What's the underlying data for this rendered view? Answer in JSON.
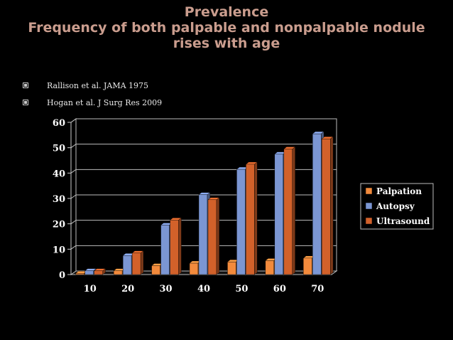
{
  "slide": {
    "title_lines": [
      "Prevalence",
      "Frequency of both palpable and nonpalpable nodule",
      "rises with age"
    ],
    "bullets": [
      "Rallison et al. JAMA 1975",
      "Hogan et al. J Surg Res 2009"
    ]
  },
  "chart_data": {
    "type": "bar",
    "title": "",
    "xlabel": "",
    "ylabel": "",
    "categories": [
      "10",
      "20",
      "30",
      "40",
      "50",
      "60",
      "70"
    ],
    "ylim": [
      0,
      60
    ],
    "yticks": [
      0,
      10,
      20,
      30,
      40,
      50,
      60
    ],
    "grid": true,
    "legend_position": "right",
    "series": [
      {
        "name": "Palpation",
        "color": "#f28a3c",
        "values": [
          0.5,
          1.5,
          3.5,
          4.5,
          5,
          5.5,
          6.5
        ]
      },
      {
        "name": "Autopsy",
        "color": "#7b96d3",
        "values": [
          1.5,
          7.5,
          19.5,
          31.5,
          41.5,
          47.5,
          55.5
        ]
      },
      {
        "name": "Ultrasound",
        "color": "#d2612a",
        "values": [
          1.5,
          8.5,
          21.5,
          29.5,
          43.5,
          49.5,
          53.5
        ]
      }
    ]
  }
}
